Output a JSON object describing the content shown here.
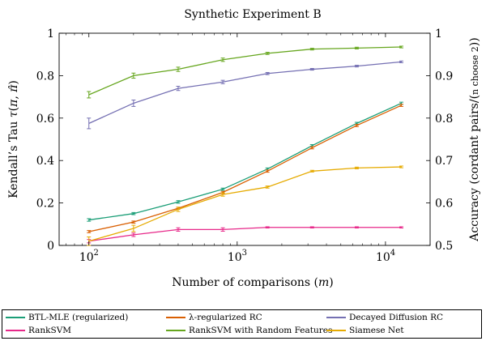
{
  "chart_data": {
    "type": "line",
    "title": "Synthetic Experiment B",
    "xlabel": "Number of comparisons (m)",
    "ylabel_left": "Kendall’s Tau τ(π, π̂)",
    "ylabel_right": "Accuracy (cordant pairs/(n choose 2))",
    "x_scale": "log",
    "xlim": [
      63,
      20000
    ],
    "ylim_left": [
      0,
      1
    ],
    "ylim_right": [
      0.5,
      1
    ],
    "x_ticks": [
      {
        "value": 100,
        "label": "10",
        "exp": "2"
      },
      {
        "value": 1000,
        "label": "10",
        "exp": "3"
      },
      {
        "value": 10000,
        "label": "10",
        "exp": "4"
      }
    ],
    "y_ticks_left": [
      "0",
      "0.2",
      "0.4",
      "0.6",
      "0.8",
      "1"
    ],
    "y_ticks_right": [
      "0.5",
      "0.6",
      "0.7",
      "0.8",
      "0.9",
      "1"
    ],
    "grid": false,
    "legend_position": "bottom",
    "series": [
      {
        "name": "BTL-MLE (regularized)",
        "color": "#1b9e77",
        "x": [
          100,
          200,
          400,
          800,
          1600,
          3200,
          6400,
          12800
        ],
        "y": [
          0.12,
          0.15,
          0.205,
          0.265,
          0.36,
          0.47,
          0.575,
          0.67
        ],
        "err": [
          0.006,
          0.005,
          0.006,
          0.005,
          0.005,
          0.005,
          0.005,
          0.005
        ]
      },
      {
        "name": "λ-regularized RC",
        "color": "#d95f02",
        "x": [
          100,
          200,
          400,
          800,
          1600,
          3200,
          6400,
          12800
        ],
        "y": [
          0.065,
          0.11,
          0.175,
          0.25,
          0.35,
          0.46,
          0.565,
          0.66
        ],
        "err": [
          0.005,
          0.005,
          0.005,
          0.005,
          0.005,
          0.005,
          0.005,
          0.005
        ]
      },
      {
        "name": "Decayed Diffusion RC",
        "color": "#7570b3",
        "x": [
          100,
          200,
          400,
          800,
          1600,
          3200,
          6400,
          12800
        ],
        "y": [
          0.575,
          0.67,
          0.74,
          0.77,
          0.81,
          0.83,
          0.845,
          0.865
        ],
        "err": [
          0.025,
          0.015,
          0.01,
          0.008,
          0.005,
          0.004,
          0.004,
          0.004
        ]
      },
      {
        "name": "RankSVM",
        "color": "#e7298a",
        "x": [
          100,
          200,
          400,
          800,
          1600,
          3200,
          6400,
          12800
        ],
        "y": [
          0.02,
          0.05,
          0.075,
          0.075,
          0.085,
          0.085,
          0.085,
          0.085
        ],
        "err": [
          0.008,
          0.008,
          0.008,
          0.008,
          0.003,
          0.003,
          0.003,
          0.003
        ]
      },
      {
        "name": "RankSVM with Random Features",
        "color": "#66a61e",
        "x": [
          100,
          200,
          400,
          800,
          1600,
          3200,
          6400,
          12800
        ],
        "y": [
          0.71,
          0.8,
          0.83,
          0.875,
          0.905,
          0.925,
          0.93,
          0.935
        ],
        "err": [
          0.015,
          0.012,
          0.01,
          0.008,
          0.005,
          0.004,
          0.004,
          0.004
        ]
      },
      {
        "name": "Siamese Net",
        "color": "#e6ab02",
        "x": [
          100,
          200,
          400,
          800,
          1600,
          3200,
          6400,
          12800
        ],
        "y": [
          0.02,
          0.08,
          0.17,
          0.24,
          0.275,
          0.35,
          0.365,
          0.37
        ],
        "err": [
          0.02,
          0.015,
          0.01,
          0.008,
          0.005,
          0.004,
          0.004,
          0.004
        ]
      }
    ]
  }
}
